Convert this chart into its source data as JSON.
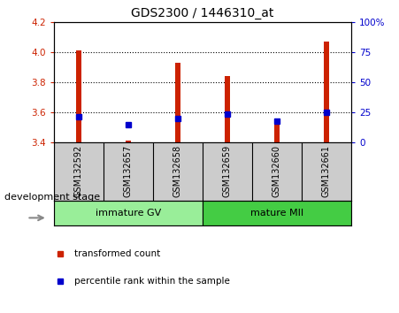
{
  "title": "GDS2300 / 1446310_at",
  "samples": [
    "GSM132592",
    "GSM132657",
    "GSM132658",
    "GSM132659",
    "GSM132660",
    "GSM132661"
  ],
  "bar_bottoms": [
    3.4,
    3.4,
    3.4,
    3.4,
    3.4,
    3.4
  ],
  "bar_tops": [
    4.01,
    3.41,
    3.93,
    3.84,
    3.54,
    4.07
  ],
  "percentile_values": [
    3.57,
    3.52,
    3.56,
    3.59,
    3.54,
    3.6
  ],
  "bar_color": "#cc2200",
  "percentile_color": "#0000cc",
  "ylim_left": [
    3.4,
    4.2
  ],
  "ylim_right": [
    0,
    100
  ],
  "yticks_left": [
    3.4,
    3.6,
    3.8,
    4.0,
    4.2
  ],
  "yticks_right": [
    0,
    25,
    50,
    75,
    100
  ],
  "ytick_labels_right": [
    "0",
    "25",
    "50",
    "75",
    "100%"
  ],
  "group1_label": "immature GV",
  "group2_label": "mature MII",
  "group1_indices": [
    0,
    1,
    2
  ],
  "group2_indices": [
    3,
    4,
    5
  ],
  "group1_color": "#99ee99",
  "group2_color": "#44cc44",
  "factor_label": "development stage",
  "legend_bar_label": "transformed count",
  "legend_perc_label": "percentile rank within the sample",
  "bar_width": 0.12,
  "grid_linestyle": "dotted",
  "grid_color": "black",
  "left_tick_color": "#cc2200",
  "right_tick_color": "#0000cc",
  "sample_box_color": "#cccccc",
  "plot_bg_color": "#ffffff",
  "fig_bg_color": "#ffffff"
}
